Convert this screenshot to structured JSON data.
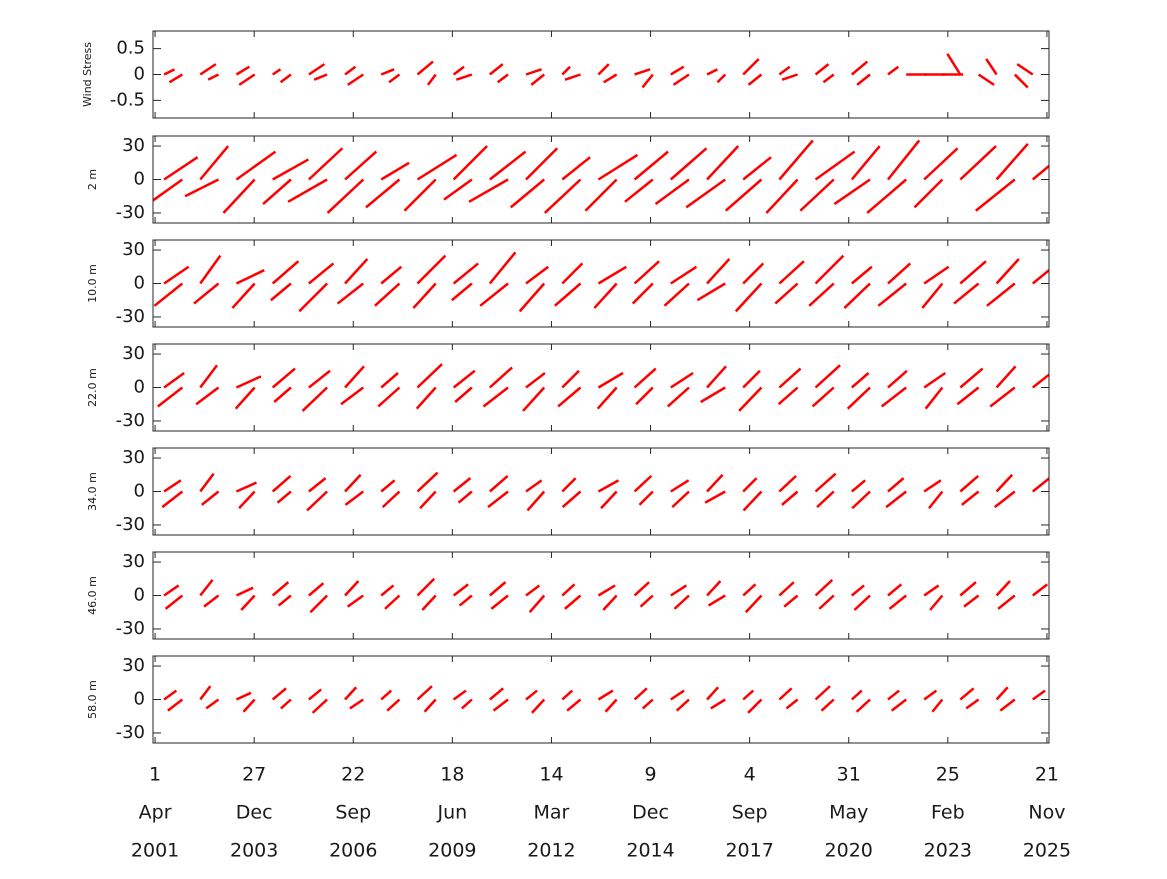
{
  "chart_data": {
    "type": "stick",
    "xlim": [
      "2001-03-11",
      "2025-12-12"
    ],
    "xticks": [
      {
        "value": "2001-04-01",
        "label": [
          "1",
          "Apr",
          "2001"
        ]
      },
      {
        "value": "2003-12-27",
        "label": [
          "27",
          "Dec",
          "2003"
        ]
      },
      {
        "value": "2006-09-22",
        "label": [
          "22",
          "Sep",
          "2006"
        ]
      },
      {
        "value": "2009-06-18",
        "label": [
          "18",
          "Jun",
          "2009"
        ]
      },
      {
        "value": "2012-03-14",
        "label": [
          "14",
          "Mar",
          "2012"
        ]
      },
      {
        "value": "2014-12-09",
        "label": [
          "9",
          "Dec",
          "2014"
        ]
      },
      {
        "value": "2017-09-04",
        "label": [
          "4",
          "Sep",
          "2017"
        ]
      },
      {
        "value": "2020-05-31",
        "label": [
          "31",
          "May",
          "2020"
        ]
      },
      {
        "value": "2023-02-25",
        "label": [
          "25",
          "Feb",
          "2023"
        ]
      },
      {
        "value": "2025-11-21",
        "label": [
          "21",
          "Nov",
          "2025"
        ]
      }
    ],
    "x": [
      "2001-07-01",
      "2002-01-01",
      "2002-07-01",
      "2003-01-01",
      "2003-07-01",
      "2004-01-01",
      "2004-07-01",
      "2005-01-01",
      "2005-07-01",
      "2006-01-01",
      "2006-07-01",
      "2007-01-01",
      "2007-07-01",
      "2008-01-01",
      "2008-07-01",
      "2009-01-01",
      "2009-07-01",
      "2010-01-01",
      "2010-07-01",
      "2011-01-01",
      "2011-07-01",
      "2012-01-01",
      "2012-07-01",
      "2013-01-01",
      "2013-07-01",
      "2014-01-01",
      "2014-07-01",
      "2015-01-01",
      "2015-07-01",
      "2016-01-01",
      "2016-07-01",
      "2017-01-01",
      "2017-07-01",
      "2018-01-01",
      "2018-07-01",
      "2019-01-01",
      "2019-07-01",
      "2020-01-01",
      "2020-07-01",
      "2021-01-01",
      "2021-07-01",
      "2022-01-01",
      "2022-07-01",
      "2023-01-01",
      "2023-07-01",
      "2024-01-01",
      "2024-07-01",
      "2025-01-01",
      "2025-07-01"
    ],
    "panels": [
      {
        "ylabel": "Wind Stress",
        "color": "#ff0000",
        "ylim": [
          -0.84,
          0.84
        ],
        "yticks": [
          -0.5,
          0,
          0.5
        ],
        "u": [
          0.2,
          -0.25,
          0.3,
          -0.2,
          0.25,
          -0.3,
          0.15,
          -0.2,
          0.3,
          -0.25,
          0.2,
          -0.3,
          0.25,
          -0.2,
          0.3,
          -0.15,
          0.2,
          -0.3,
          0.25,
          -0.2,
          0.3,
          -0.25,
          0.15,
          -0.3,
          0.2,
          -0.25,
          0.3,
          -0.2,
          0.25,
          -0.3,
          0.2,
          -0.15,
          0.3,
          -0.25,
          0.2,
          -0.3,
          0.25,
          -0.2,
          0.3,
          -0.25,
          0.2,
          0.4,
          0.4,
          0.4,
          -0.25,
          0.3,
          -0.2,
          0.25,
          -0.3
        ],
        "v": [
          0.1,
          -0.15,
          0.2,
          -0.1,
          0.15,
          -0.2,
          0.1,
          -0.15,
          0.2,
          -0.1,
          0.15,
          -0.2,
          0.1,
          -0.15,
          0.25,
          -0.2,
          0.15,
          -0.1,
          0.2,
          -0.15,
          0.1,
          -0.2,
          0.15,
          -0.1,
          0.2,
          -0.15,
          0.1,
          -0.25,
          0.15,
          -0.2,
          0.1,
          -0.15,
          0.3,
          -0.2,
          0.15,
          -0.1,
          0.2,
          -0.15,
          0.25,
          -0.2,
          0.15,
          0,
          0,
          0,
          0.4,
          -0.2,
          0.3,
          -0.25,
          0.2
        ]
      },
      {
        "ylabel": "2 m",
        "color": "#ff0000",
        "ylim": [
          -39,
          39
        ],
        "yticks": [
          -30,
          0,
          30
        ],
        "u": [
          30,
          -35,
          25,
          -30,
          35,
          -28,
          32,
          -25,
          30,
          -35,
          28,
          -32,
          25,
          -30,
          35,
          -28,
          30,
          -25,
          32,
          -35,
          28,
          -30,
          25,
          -32,
          35,
          -28,
          30,
          -25,
          32,
          -30,
          28,
          -35,
          25,
          -32,
          30,
          -28,
          35,
          -30,
          25,
          -32,
          28,
          -35,
          30,
          -25,
          32,
          null,
          28,
          -35,
          30
        ],
        "v": [
          20,
          -25,
          30,
          -15,
          25,
          -30,
          18,
          -22,
          28,
          -20,
          25,
          -30,
          15,
          -25,
          22,
          -28,
          30,
          -18,
          25,
          -20,
          28,
          -25,
          20,
          -30,
          22,
          -28,
          25,
          -20,
          28,
          -22,
          30,
          -25,
          20,
          -28,
          35,
          -30,
          25,
          -28,
          30,
          -22,
          35,
          -30,
          28,
          -25,
          30,
          null,
          32,
          -28,
          25
        ]
      },
      {
        "ylabel": "10.0 m",
        "color": "#ff0000",
        "ylim": [
          -39,
          39
        ],
        "yticks": [
          -30,
          0,
          30
        ],
        "u": [
          22,
          -25,
          18,
          -22,
          25,
          -20,
          23,
          -18,
          22,
          -25,
          20,
          -23,
          18,
          -22,
          25,
          -20,
          22,
          -18,
          23,
          -25,
          20,
          -22,
          18,
          -23,
          25,
          -20,
          22,
          -18,
          23,
          -22,
          20,
          -25,
          18,
          -23,
          22,
          -20,
          25,
          -22,
          18,
          -23,
          20,
          -25,
          22,
          -18,
          23,
          -22,
          20,
          -25,
          22
        ],
        "v": [
          15,
          -20,
          25,
          -18,
          12,
          -22,
          20,
          -15,
          18,
          -25,
          22,
          -18,
          15,
          -20,
          25,
          -22,
          18,
          -15,
          28,
          -20,
          15,
          -25,
          18,
          -20,
          15,
          -22,
          20,
          -18,
          15,
          -20,
          22,
          -15,
          18,
          -25,
          20,
          -18,
          25,
          -20,
          15,
          -22,
          18,
          -20,
          15,
          -22,
          20,
          -18,
          22,
          -20,
          18
        ]
      },
      {
        "ylabel": "22.0 m",
        "color": "#ff0000",
        "ylim": [
          -39,
          39
        ],
        "yticks": [
          -30,
          0,
          30
        ],
        "u": [
          18,
          -22,
          15,
          -20,
          22,
          -17,
          20,
          -15,
          19,
          -22,
          17,
          -20,
          15,
          -19,
          22,
          -17,
          19,
          -15,
          20,
          -22,
          17,
          -19,
          15,
          -20,
          22,
          -17,
          19,
          -15,
          20,
          -19,
          17,
          -22,
          15,
          -20,
          19,
          -17,
          22,
          -19,
          15,
          -20,
          17,
          -22,
          19,
          -15,
          20,
          -19,
          17,
          -22,
          19
        ],
        "v": [
          13,
          -17,
          20,
          -15,
          10,
          -19,
          17,
          -13,
          15,
          -21,
          19,
          -15,
          13,
          -17,
          21,
          -19,
          15,
          -13,
          18,
          -17,
          13,
          -21,
          15,
          -17,
          13,
          -19,
          17,
          -15,
          13,
          -17,
          19,
          -13,
          15,
          -21,
          17,
          -15,
          20,
          -17,
          13,
          -19,
          15,
          -17,
          13,
          -19,
          17,
          -15,
          19,
          -17,
          15
        ]
      },
      {
        "ylabel": "34.0 m",
        "color": "#ff0000",
        "ylim": [
          -39,
          39
        ],
        "yticks": [
          -30,
          0,
          30
        ],
        "u": [
          15,
          -18,
          12,
          -15,
          18,
          -14,
          16,
          -12,
          15,
          -18,
          14,
          -16,
          12,
          -15,
          18,
          -14,
          15,
          -12,
          16,
          -18,
          14,
          -15,
          12,
          -16,
          18,
          -14,
          15,
          -12,
          16,
          -15,
          14,
          -18,
          12,
          -16,
          15,
          -14,
          18,
          -15,
          12,
          -16,
          14,
          -18,
          15,
          -12,
          16,
          -15,
          14,
          -18,
          15
        ],
        "v": [
          10,
          -14,
          16,
          -12,
          8,
          -15,
          14,
          -10,
          12,
          -17,
          15,
          -12,
          10,
          -14,
          17,
          -15,
          12,
          -10,
          14,
          -14,
          10,
          -17,
          12,
          -14,
          10,
          -15,
          14,
          -12,
          10,
          -14,
          15,
          -10,
          12,
          -17,
          14,
          -12,
          16,
          -14,
          10,
          -15,
          12,
          -14,
          10,
          -15,
          14,
          -12,
          15,
          -14,
          12
        ]
      },
      {
        "ylabel": "46.0 m",
        "color": "#ff0000",
        "ylim": [
          -39,
          39
        ],
        "yticks": [
          -30,
          0,
          30
        ],
        "u": [
          13,
          -15,
          11,
          -13,
          15,
          -12,
          14,
          -11,
          13,
          -15,
          12,
          -14,
          11,
          -13,
          15,
          -12,
          13,
          -11,
          14,
          -15,
          12,
          -13,
          11,
          -14,
          15,
          -12,
          13,
          -11,
          14,
          -13,
          12,
          -15,
          11,
          -14,
          13,
          -12,
          15,
          -13,
          11,
          -14,
          12,
          -15,
          13,
          -11,
          14,
          -13,
          12,
          -15,
          13
        ],
        "v": [
          9,
          -12,
          14,
          -10,
          7,
          -13,
          12,
          -9,
          11,
          -15,
          13,
          -10,
          9,
          -12,
          15,
          -13,
          10,
          -9,
          12,
          -12,
          9,
          -15,
          10,
          -12,
          9,
          -13,
          12,
          -10,
          9,
          -12,
          13,
          -9,
          10,
          -15,
          12,
          -10,
          14,
          -12,
          9,
          -13,
          10,
          -12,
          9,
          -13,
          12,
          -10,
          13,
          -12,
          10
        ]
      },
      {
        "ylabel": "58.0 m",
        "color": "#ff0000",
        "ylim": [
          -39,
          39
        ],
        "yticks": [
          -30,
          0,
          30
        ],
        "u": [
          11,
          -13,
          9,
          -11,
          13,
          -10,
          12,
          -9,
          11,
          -13,
          10,
          -12,
          9,
          -11,
          13,
          -10,
          11,
          -9,
          12,
          -13,
          10,
          -11,
          9,
          -12,
          13,
          -10,
          11,
          -9,
          12,
          -11,
          10,
          -13,
          9,
          -12,
          11,
          -10,
          13,
          -11,
          9,
          -12,
          10,
          -13,
          11,
          -9,
          12,
          -11,
          10,
          -13,
          11
        ],
        "v": [
          8,
          -10,
          12,
          -8,
          6,
          -11,
          10,
          -8,
          9,
          -12,
          11,
          -8,
          8,
          -10,
          12,
          -11,
          8,
          -8,
          10,
          -10,
          8,
          -12,
          8,
          -10,
          8,
          -11,
          10,
          -8,
          8,
          -10,
          11,
          -8,
          8,
          -12,
          10,
          -8,
          12,
          -10,
          8,
          -11,
          8,
          -10,
          8,
          -11,
          10,
          -8,
          11,
          -10,
          8
        ]
      }
    ]
  }
}
